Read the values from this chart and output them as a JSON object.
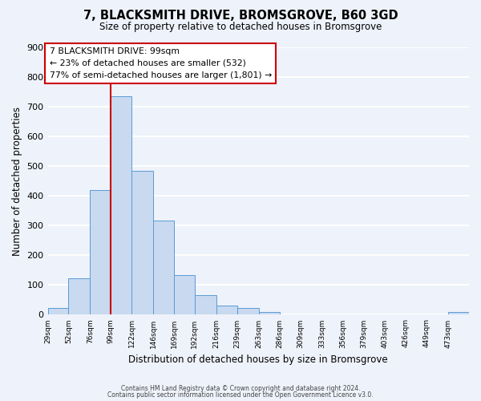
{
  "title": "7, BLACKSMITH DRIVE, BROMSGROVE, B60 3GD",
  "subtitle": "Size of property relative to detached houses in Bromsgrove",
  "xlabel": "Distribution of detached houses by size in Bromsgrove",
  "ylabel": "Number of detached properties",
  "bar_edges": [
    29,
    52,
    76,
    99,
    122,
    146,
    169,
    192,
    216,
    239,
    263,
    286,
    309,
    333,
    356,
    379,
    403,
    426,
    449,
    473,
    496
  ],
  "bar_heights": [
    22,
    122,
    420,
    735,
    483,
    318,
    133,
    65,
    30,
    22,
    10,
    0,
    0,
    0,
    0,
    0,
    0,
    0,
    0,
    8
  ],
  "bar_color": "#c8d9f0",
  "bar_edgecolor": "#5b9bd5",
  "vline_x": 99,
  "vline_color": "#cc0000",
  "annotation_line1": "7 BLACKSMITH DRIVE: 99sqm",
  "annotation_line2": "← 23% of detached houses are smaller (532)",
  "annotation_line3": "77% of semi-detached houses are larger (1,801) →",
  "annotation_box_edgecolor": "#cc0000",
  "annotation_box_facecolor": "white",
  "ylim": [
    0,
    900
  ],
  "yticks": [
    0,
    100,
    200,
    300,
    400,
    500,
    600,
    700,
    800,
    900
  ],
  "footer1": "Contains HM Land Registry data © Crown copyright and database right 2024.",
  "footer2": "Contains public sector information licensed under the Open Government Licence v3.0.",
  "background_color": "#eef2fa",
  "grid_color": "white"
}
